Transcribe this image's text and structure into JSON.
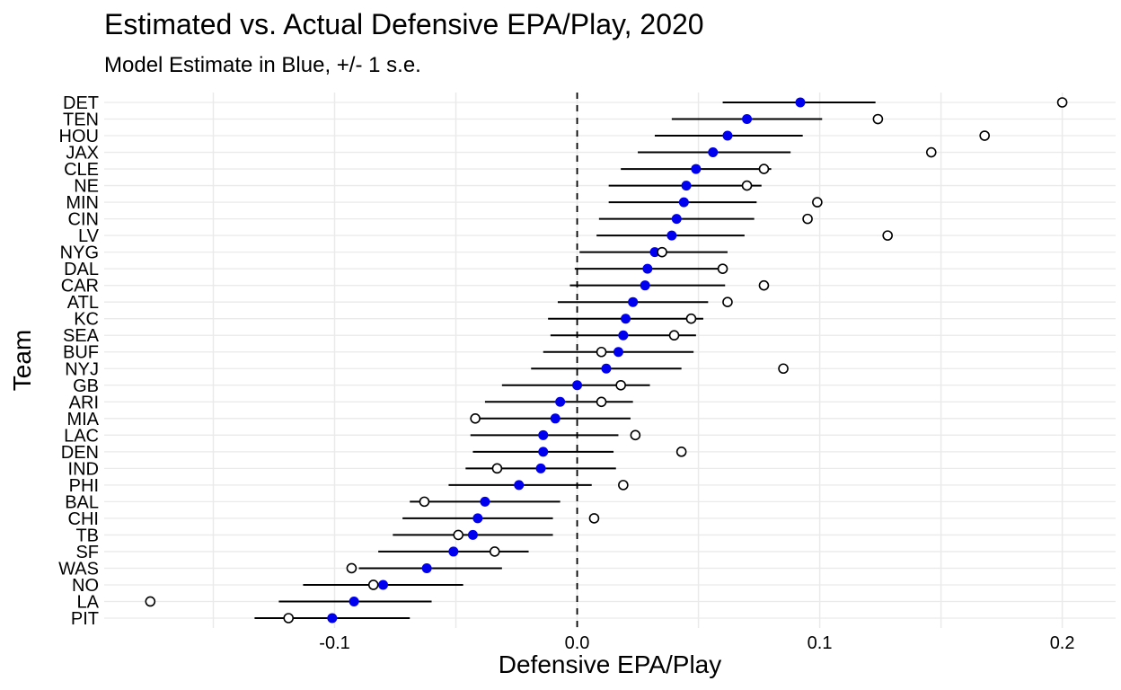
{
  "chart_data": {
    "type": "scatter",
    "title": "Estimated vs. Actual Defensive EPA/Play, 2020",
    "subtitle": "Model Estimate in Blue, +/- 1 s.e.",
    "xlabel": "Defensive EPA/Play",
    "ylabel": "Team",
    "xlim": [
      -0.195,
      0.222
    ],
    "grid_step": 0.05,
    "grid": true,
    "legend_position": "none",
    "reference_line_x": 0.0,
    "x_ticks": [
      {
        "value": -0.1,
        "label": "-0.1"
      },
      {
        "value": 0.0,
        "label": "0.0"
      },
      {
        "value": 0.1,
        "label": "0.1"
      },
      {
        "value": 0.2,
        "label": "0.2"
      }
    ],
    "colors": {
      "estimate_fill": "#0000EE",
      "actual_stroke": "#000000",
      "actual_fill": "#FFFFFF",
      "errorbar": "#000000",
      "reference_line": "#000000",
      "gridline": "#EAEAEA",
      "axis_text": "#4D4D4D",
      "title_text": "#000000"
    },
    "teams": [
      {
        "team": "DET",
        "estimate": 0.092,
        "lo": 0.06,
        "hi": 0.123,
        "actual": 0.2
      },
      {
        "team": "TEN",
        "estimate": 0.07,
        "lo": 0.039,
        "hi": 0.101,
        "actual": 0.124
      },
      {
        "team": "HOU",
        "estimate": 0.062,
        "lo": 0.032,
        "hi": 0.093,
        "actual": 0.168
      },
      {
        "team": "JAX",
        "estimate": 0.056,
        "lo": 0.025,
        "hi": 0.088,
        "actual": 0.146
      },
      {
        "team": "CLE",
        "estimate": 0.049,
        "lo": 0.018,
        "hi": 0.08,
        "actual": 0.077
      },
      {
        "team": "NE",
        "estimate": 0.045,
        "lo": 0.013,
        "hi": 0.076,
        "actual": 0.07
      },
      {
        "team": "MIN",
        "estimate": 0.044,
        "lo": 0.013,
        "hi": 0.074,
        "actual": 0.099
      },
      {
        "team": "CIN",
        "estimate": 0.041,
        "lo": 0.009,
        "hi": 0.073,
        "actual": 0.095
      },
      {
        "team": "LV",
        "estimate": 0.039,
        "lo": 0.008,
        "hi": 0.069,
        "actual": 0.128
      },
      {
        "team": "NYG",
        "estimate": 0.032,
        "lo": 0.001,
        "hi": 0.062,
        "actual": 0.035
      },
      {
        "team": "DAL",
        "estimate": 0.029,
        "lo": -0.001,
        "hi": 0.06,
        "actual": 0.06
      },
      {
        "team": "CAR",
        "estimate": 0.028,
        "lo": -0.003,
        "hi": 0.061,
        "actual": 0.077
      },
      {
        "team": "ATL",
        "estimate": 0.023,
        "lo": -0.008,
        "hi": 0.054,
        "actual": 0.062
      },
      {
        "team": "KC",
        "estimate": 0.02,
        "lo": -0.012,
        "hi": 0.052,
        "actual": 0.047
      },
      {
        "team": "SEA",
        "estimate": 0.019,
        "lo": -0.011,
        "hi": 0.049,
        "actual": 0.04
      },
      {
        "team": "BUF",
        "estimate": 0.017,
        "lo": -0.014,
        "hi": 0.048,
        "actual": 0.01
      },
      {
        "team": "NYJ",
        "estimate": 0.012,
        "lo": -0.019,
        "hi": 0.043,
        "actual": 0.085
      },
      {
        "team": "GB",
        "estimate": 0.0,
        "lo": -0.031,
        "hi": 0.03,
        "actual": 0.018
      },
      {
        "team": "ARI",
        "estimate": -0.007,
        "lo": -0.038,
        "hi": 0.023,
        "actual": 0.01
      },
      {
        "team": "MIA",
        "estimate": -0.009,
        "lo": -0.04,
        "hi": 0.022,
        "actual": -0.042
      },
      {
        "team": "LAC",
        "estimate": -0.014,
        "lo": -0.044,
        "hi": 0.017,
        "actual": 0.024
      },
      {
        "team": "DEN",
        "estimate": -0.014,
        "lo": -0.043,
        "hi": 0.015,
        "actual": 0.043
      },
      {
        "team": "IND",
        "estimate": -0.015,
        "lo": -0.046,
        "hi": 0.016,
        "actual": -0.033
      },
      {
        "team": "PHI",
        "estimate": -0.024,
        "lo": -0.053,
        "hi": 0.006,
        "actual": 0.019
      },
      {
        "team": "BAL",
        "estimate": -0.038,
        "lo": -0.069,
        "hi": -0.007,
        "actual": -0.063
      },
      {
        "team": "CHI",
        "estimate": -0.041,
        "lo": -0.072,
        "hi": -0.01,
        "actual": 0.007
      },
      {
        "team": "TB",
        "estimate": -0.043,
        "lo": -0.076,
        "hi": -0.01,
        "actual": -0.049
      },
      {
        "team": "SF",
        "estimate": -0.051,
        "lo": -0.082,
        "hi": -0.02,
        "actual": -0.034
      },
      {
        "team": "WAS",
        "estimate": -0.062,
        "lo": -0.09,
        "hi": -0.031,
        "actual": -0.093
      },
      {
        "team": "NO",
        "estimate": -0.08,
        "lo": -0.113,
        "hi": -0.047,
        "actual": -0.084
      },
      {
        "team": "LA",
        "estimate": -0.092,
        "lo": -0.123,
        "hi": -0.06,
        "actual": -0.176
      },
      {
        "team": "PIT",
        "estimate": -0.101,
        "lo": -0.133,
        "hi": -0.069,
        "actual": -0.119
      }
    ]
  }
}
